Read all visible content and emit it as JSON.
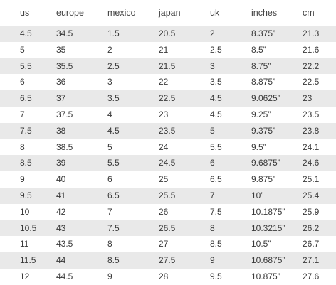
{
  "table": {
    "headers": [
      "us",
      "europe",
      "mexico",
      "japan",
      "uk",
      "inches",
      "cm"
    ],
    "rows": [
      [
        "4.5",
        "34.5",
        "1.5",
        "20.5",
        "2",
        "8.375”",
        "21.3"
      ],
      [
        "5",
        "35",
        "2",
        "21",
        "2.5",
        "8.5”",
        "21.6"
      ],
      [
        "5.5",
        "35.5",
        "2.5",
        "21.5",
        "3",
        "8.75”",
        "22.2"
      ],
      [
        "6",
        "36",
        "3",
        "22",
        "3.5",
        "8.875”",
        "22.5"
      ],
      [
        "6.5",
        "37",
        "3.5",
        "22.5",
        "4.5",
        "9.0625”",
        "23"
      ],
      [
        "7",
        "37.5",
        "4",
        "23",
        "4.5",
        "9.25”",
        "23.5"
      ],
      [
        "7.5",
        "38",
        "4.5",
        "23.5",
        "5",
        "9.375”",
        "23.8"
      ],
      [
        "8",
        "38.5",
        "5",
        "24",
        "5.5",
        "9.5”",
        "24.1"
      ],
      [
        "8.5",
        "39",
        "5.5",
        "24.5",
        "6",
        "9.6875”",
        "24.6"
      ],
      [
        "9",
        "40",
        "6",
        "25",
        "6.5",
        "9.875”",
        "25.1"
      ],
      [
        "9.5",
        "41",
        "6.5",
        "25.5",
        "7",
        "10”",
        "25.4"
      ],
      [
        "10",
        "42",
        "7",
        "26",
        "7.5",
        "10.1875”",
        "25.9"
      ],
      [
        "10.5",
        "43",
        "7.5",
        "26.5",
        "8",
        "10.3215”",
        "26.2"
      ],
      [
        "11",
        "43.5",
        "8",
        "27",
        "8.5",
        "10.5”",
        "26.7"
      ],
      [
        "11.5",
        "44",
        "8.5",
        "27.5",
        "9",
        "10.6875”",
        "27.1"
      ],
      [
        "12",
        "44.5",
        "9",
        "28",
        "9.5",
        "10.875”",
        "27.6"
      ]
    ]
  },
  "colors": {
    "shaded_row": "#e9e9e9",
    "text": "#3a3a3a"
  }
}
